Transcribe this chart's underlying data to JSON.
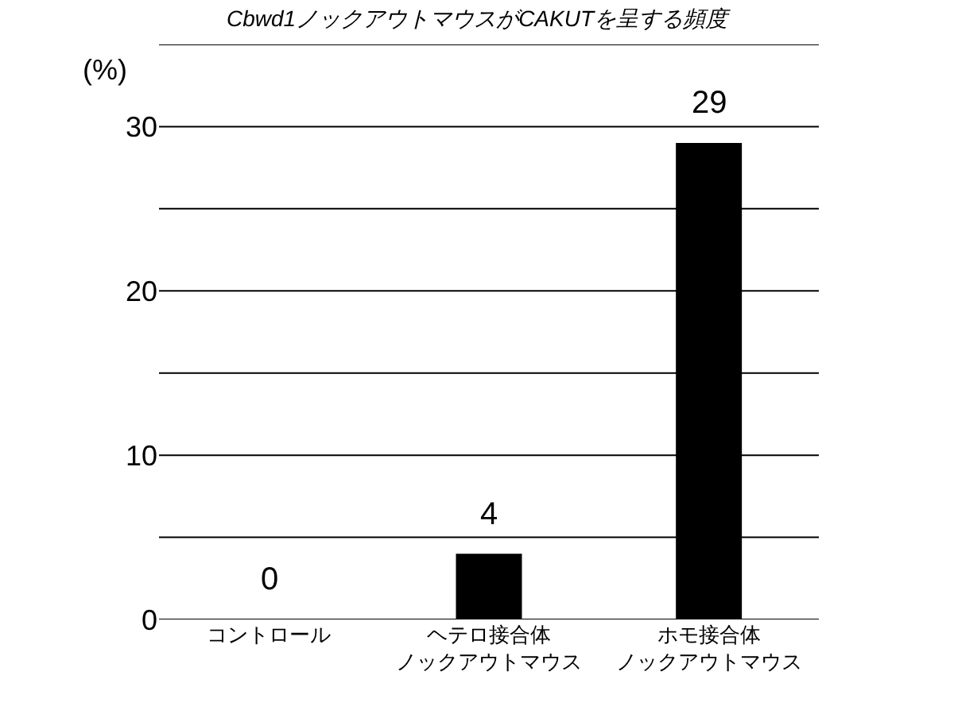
{
  "chart_data": {
    "type": "bar",
    "title": "Cbwd1ノックアウトマウスがCAKUTを呈する頻度",
    "ylabel": "(%)",
    "categories": [
      "コントロール",
      "ヘテロ接合体ノックアウトマウス",
      "ホモ接合体ノックアウトマウス"
    ],
    "values": [
      0,
      4,
      29
    ],
    "color": "#000000",
    "data_labels": true,
    "grid": "y",
    "ylim": [
      0,
      35
    ],
    "yticks": [
      0,
      {
        "value": 5,
        "label": null
      },
      10,
      {
        "value": 15,
        "label": null
      },
      20,
      {
        "value": 25,
        "label": null
      },
      30,
      {
        "value": 35,
        "label": null
      }
    ]
  }
}
